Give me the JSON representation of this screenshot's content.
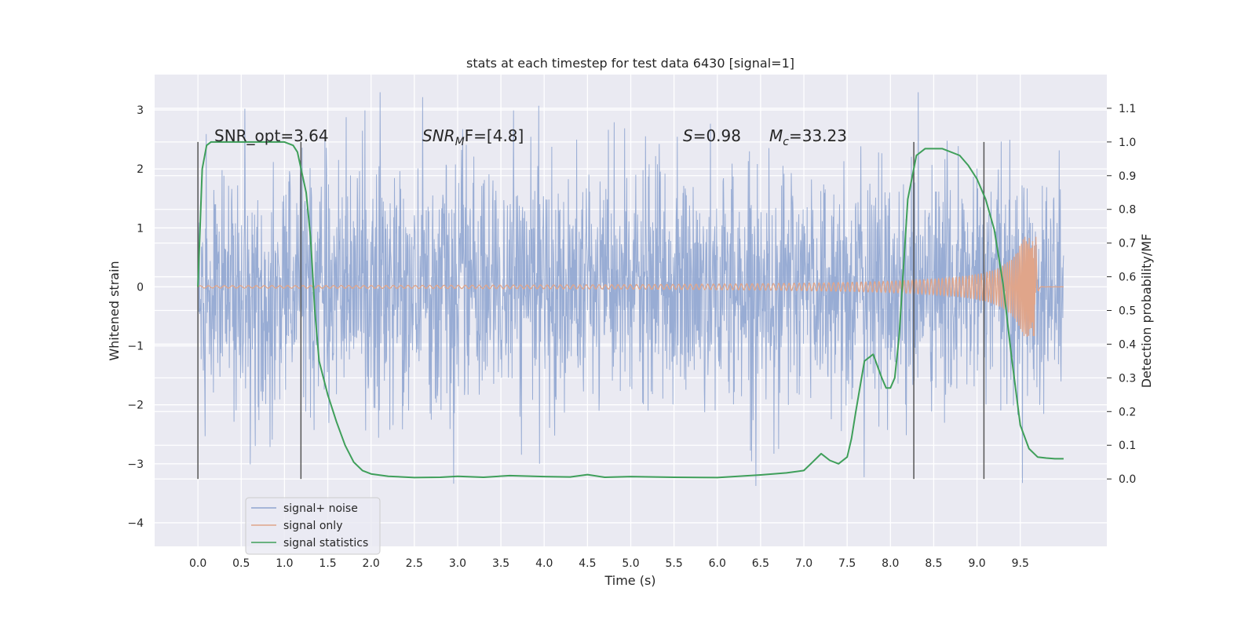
{
  "chart_data": {
    "type": "line",
    "title": "stats at each timestep for test data 6430 [signal=1]",
    "xlabel": "Time (s)",
    "ylabel": "Whitened strain",
    "ylabel_right": "Detection probability/MF",
    "xlim": [
      -0.5,
      10.5
    ],
    "ylim": [
      -4.4,
      3.6
    ],
    "ylim_right": [
      -0.2,
      1.2
    ],
    "x_ticks": [
      "0.0",
      "0.5",
      "1.0",
      "1.5",
      "2.0",
      "2.5",
      "3.0",
      "3.5",
      "4.0",
      "4.5",
      "5.0",
      "5.5",
      "6.0",
      "6.5",
      "7.0",
      "7.5",
      "8.0",
      "8.5",
      "9.0",
      "9.5"
    ],
    "y_ticks": [
      "3",
      "2",
      "1",
      "0",
      "−1",
      "−2",
      "−3",
      "−4"
    ],
    "y_ticks_right": [
      "1.1",
      "1.0",
      "0.9",
      "0.8",
      "0.7",
      "0.6",
      "0.5",
      "0.4",
      "0.3",
      "0.2",
      "0.1",
      "0.0"
    ],
    "grid": true,
    "legend_position": "lower-left",
    "annotations": {
      "snr_opt": "SNR_opt=3.64",
      "snr_mf_label": "SNR",
      "snr_mf_sub": "M",
      "snr_mf_rest": "F=[4.8]",
      "s_label": "S",
      "s_value": "=0.98",
      "mc_label": "M",
      "mc_sub": "c",
      "mc_value": "=33.23"
    },
    "vertical_markers_x": [
      0.0,
      1.19,
      8.27,
      9.08
    ],
    "series": [
      {
        "name": "signal+ noise",
        "color": "#8fa5d0",
        "description_stats": {
          "x_start": 0.0,
          "x_end": 10.0,
          "approx_envelope_low": -2.0,
          "approx_envelope_high": 2.0,
          "seed": 6430
        }
      },
      {
        "name": "signal only",
        "color": "#e0a58a",
        "chirp": {
          "t_merge": 9.68,
          "peak_amplitude": 0.85,
          "base_amplitude": 0.02
        }
      },
      {
        "name": "signal statistics",
        "color": "#3f9f5a",
        "axis": "right",
        "x": [
          0.0,
          0.05,
          0.1,
          0.15,
          0.2,
          0.3,
          0.5,
          0.8,
          1.0,
          1.1,
          1.15,
          1.25,
          1.3,
          1.35,
          1.4,
          1.45,
          1.5,
          1.6,
          1.7,
          1.8,
          1.9,
          2.0,
          2.2,
          2.5,
          2.8,
          3.0,
          3.3,
          3.6,
          4.0,
          4.3,
          4.5,
          4.7,
          5.0,
          5.5,
          6.0,
          6.5,
          6.8,
          7.0,
          7.1,
          7.2,
          7.3,
          7.4,
          7.5,
          7.55,
          7.6,
          7.7,
          7.8,
          7.9,
          7.95,
          8.0,
          8.05,
          8.1,
          8.2,
          8.3,
          8.4,
          8.6,
          8.8,
          8.9,
          9.0,
          9.1,
          9.2,
          9.3,
          9.4,
          9.5,
          9.6,
          9.7,
          9.8,
          9.9,
          10.0
        ],
        "y": [
          0.57,
          0.92,
          0.99,
          1.0,
          1.0,
          1.0,
          1.0,
          1.0,
          1.0,
          0.99,
          0.97,
          0.85,
          0.72,
          0.5,
          0.35,
          0.3,
          0.25,
          0.17,
          0.1,
          0.05,
          0.025,
          0.015,
          0.008,
          0.004,
          0.005,
          0.008,
          0.005,
          0.01,
          0.007,
          0.006,
          0.013,
          0.005,
          0.007,
          0.005,
          0.004,
          0.012,
          0.018,
          0.025,
          0.05,
          0.075,
          0.055,
          0.045,
          0.065,
          0.12,
          0.2,
          0.35,
          0.37,
          0.3,
          0.27,
          0.27,
          0.3,
          0.42,
          0.83,
          0.96,
          0.98,
          0.98,
          0.96,
          0.93,
          0.89,
          0.83,
          0.74,
          0.58,
          0.36,
          0.16,
          0.09,
          0.065,
          0.062,
          0.06,
          0.06
        ]
      }
    ]
  }
}
